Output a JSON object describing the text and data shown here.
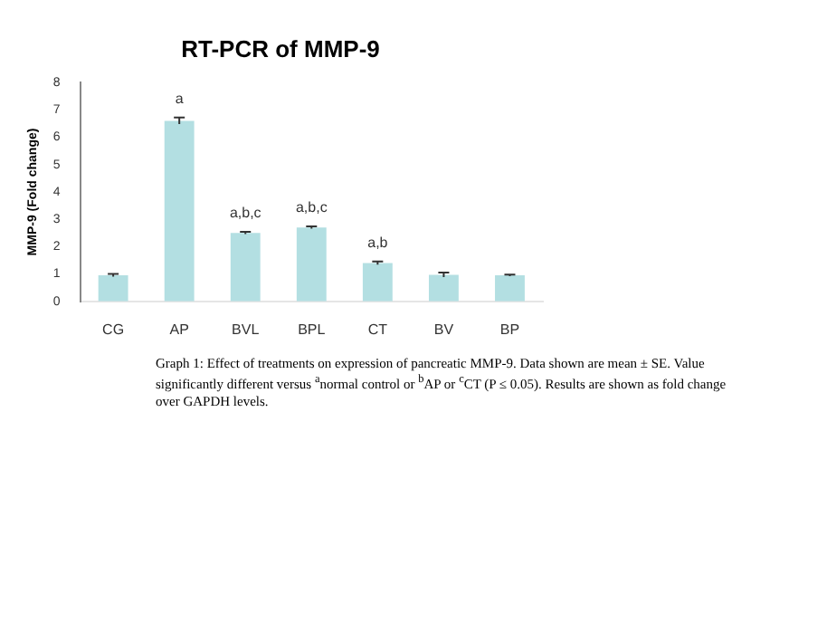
{
  "chart_data": {
    "type": "bar",
    "title": "RT-PCR of MMP-9",
    "ylabel": "MMP-9 (Fold change)",
    "categories": [
      "CG",
      "AP",
      "BVL",
      "BPL",
      "CT",
      "BV",
      "BP"
    ],
    "values": [
      0.95,
      6.6,
      2.5,
      2.7,
      1.4,
      0.97,
      0.95
    ],
    "errors": [
      0.05,
      0.12,
      0.04,
      0.04,
      0.06,
      0.08,
      0.03
    ],
    "color": "#b3dfe2",
    "ylim": [
      0,
      8
    ],
    "yticks": [
      0,
      1,
      2,
      3,
      4,
      5,
      6,
      7,
      8
    ],
    "grid": false,
    "legend": false,
    "annotations": [
      {
        "text": "a",
        "x": "AP",
        "y": 6.72
      },
      {
        "text": "a,b,c",
        "x": "BVL",
        "y": 2.54
      },
      {
        "text": "a,b,c",
        "x": "BPL",
        "y": 2.74
      },
      {
        "text": "a,b",
        "x": "CT",
        "y": 1.46
      },
      "Graph 1: Effect of treatments on expression of pancreatic MMP-9. Data shown are mean ± SE. Value significantly different versus $^{a}$normal control or $^{b}$AP or $^{c}$CT (P ≤ 0.05). Results are shown as fold change over GAPDH levels."
    ]
  }
}
